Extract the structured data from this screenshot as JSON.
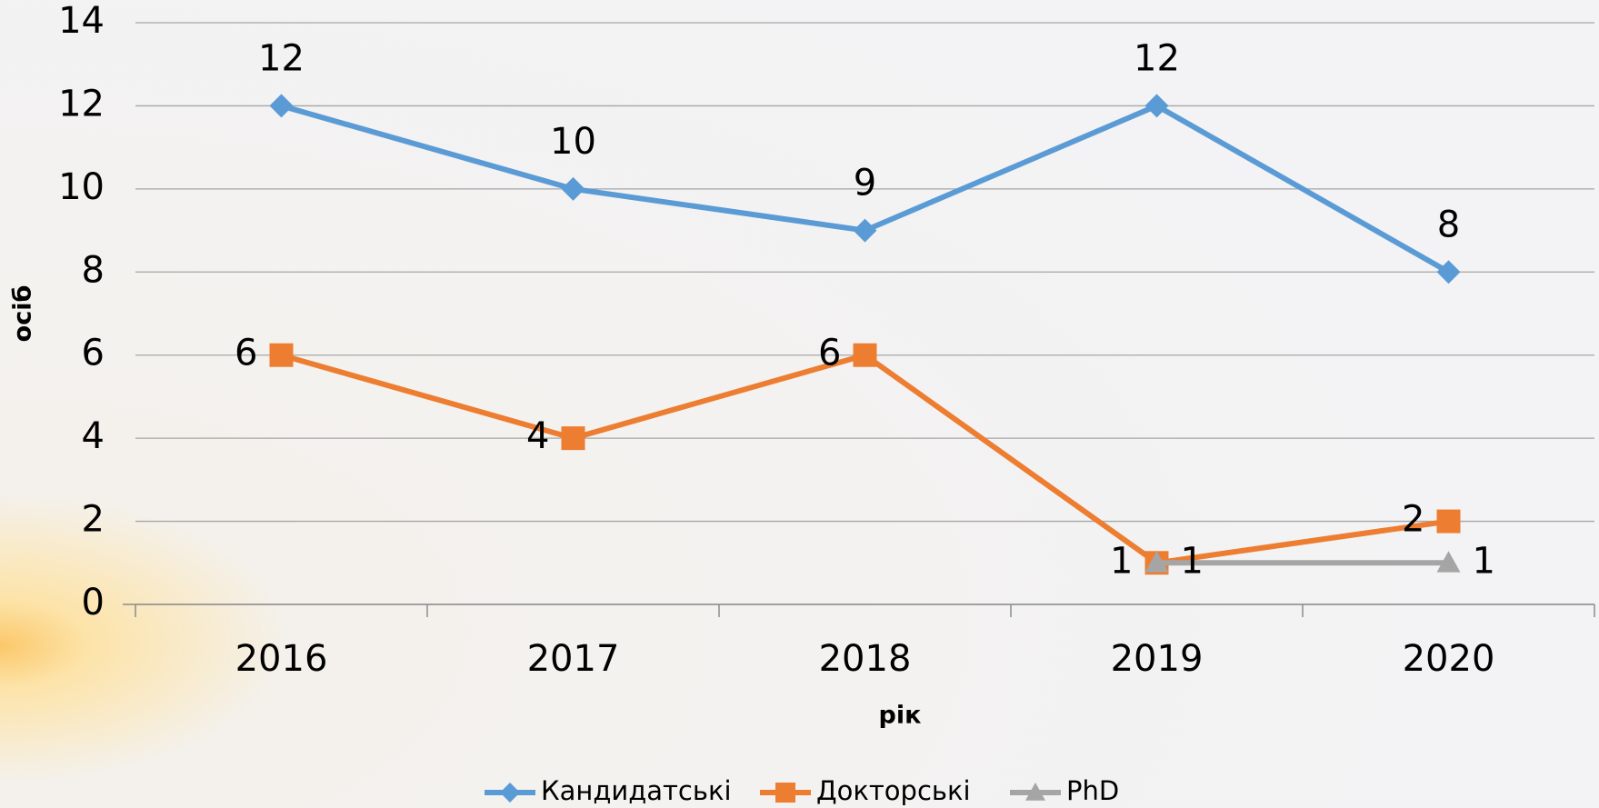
{
  "chart_data": {
    "type": "line",
    "x_label": "рік",
    "y_label": "осіб",
    "categories": [
      "2016",
      "2017",
      "2018",
      "2019",
      "2020"
    ],
    "series": [
      {
        "name": "Кандидатські",
        "color": "#5b9bd5",
        "marker": "diamond",
        "label_position": "above",
        "values": [
          12,
          10,
          9,
          12,
          8
        ]
      },
      {
        "name": "Докторські",
        "color": "#ed7d31",
        "marker": "square",
        "label_position": "left",
        "values": [
          6,
          4,
          6,
          1,
          2
        ]
      },
      {
        "name": "PhD",
        "color": "#a5a5a5",
        "marker": "triangle",
        "label_position": "right",
        "values": [
          null,
          null,
          null,
          1,
          1
        ]
      }
    ],
    "ylim": [
      0,
      14
    ],
    "yticks": [
      0,
      2,
      4,
      6,
      8,
      10,
      12,
      14
    ],
    "grid": true,
    "legend": "bottom"
  }
}
